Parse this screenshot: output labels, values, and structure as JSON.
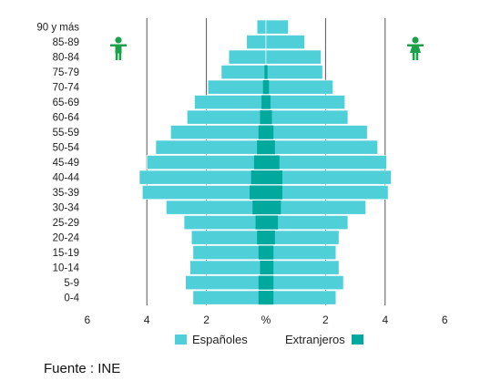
{
  "chart_data": {
    "type": "bar",
    "orientation": "horizontal-pyramid",
    "categories": [
      "90 y más",
      "85-89",
      "80-84",
      "75-79",
      "70-74",
      "65-69",
      "60-64",
      "55-59",
      "50-54",
      "45-49",
      "40-44",
      "35-39",
      "30-34",
      "25-29",
      "20-24",
      "15-19",
      "10-14",
      "5-9",
      "0-4"
    ],
    "series": [
      {
        "name": "Españoles",
        "color": "#4fcfd8",
        "male": [
          0.3,
          0.65,
          1.25,
          1.5,
          1.95,
          2.4,
          2.65,
          3.2,
          3.7,
          4.0,
          4.25,
          4.15,
          3.35,
          2.75,
          2.5,
          2.45,
          2.55,
          2.7,
          2.45
        ],
        "female": [
          0.75,
          1.3,
          1.85,
          1.9,
          2.25,
          2.65,
          2.75,
          3.4,
          3.75,
          4.05,
          4.2,
          4.1,
          3.35,
          2.75,
          2.45,
          2.35,
          2.45,
          2.6,
          2.35
        ]
      },
      {
        "name": "Extranjeros",
        "color": "#00a89d",
        "male": [
          0.0,
          0.0,
          0.0,
          0.05,
          0.1,
          0.15,
          0.2,
          0.25,
          0.3,
          0.4,
          0.5,
          0.55,
          0.45,
          0.35,
          0.3,
          0.25,
          0.2,
          0.25,
          0.25
        ],
        "female": [
          0.0,
          0.0,
          0.0,
          0.05,
          0.1,
          0.15,
          0.2,
          0.25,
          0.3,
          0.45,
          0.55,
          0.55,
          0.5,
          0.4,
          0.3,
          0.25,
          0.25,
          0.25,
          0.25
        ]
      }
    ],
    "x_ticks": [
      "6",
      "4",
      "2",
      "%",
      "2",
      "4",
      "6"
    ],
    "xlim": [
      -6,
      6
    ],
    "grid": true,
    "legend": "bottom",
    "male_icon": "male-icon",
    "female_icon": "female-icon",
    "icon_color": "#1aa14a",
    "text_color": "#222222",
    "grid_color": "#555555"
  },
  "footer": {
    "source": "Fuente : INE"
  }
}
